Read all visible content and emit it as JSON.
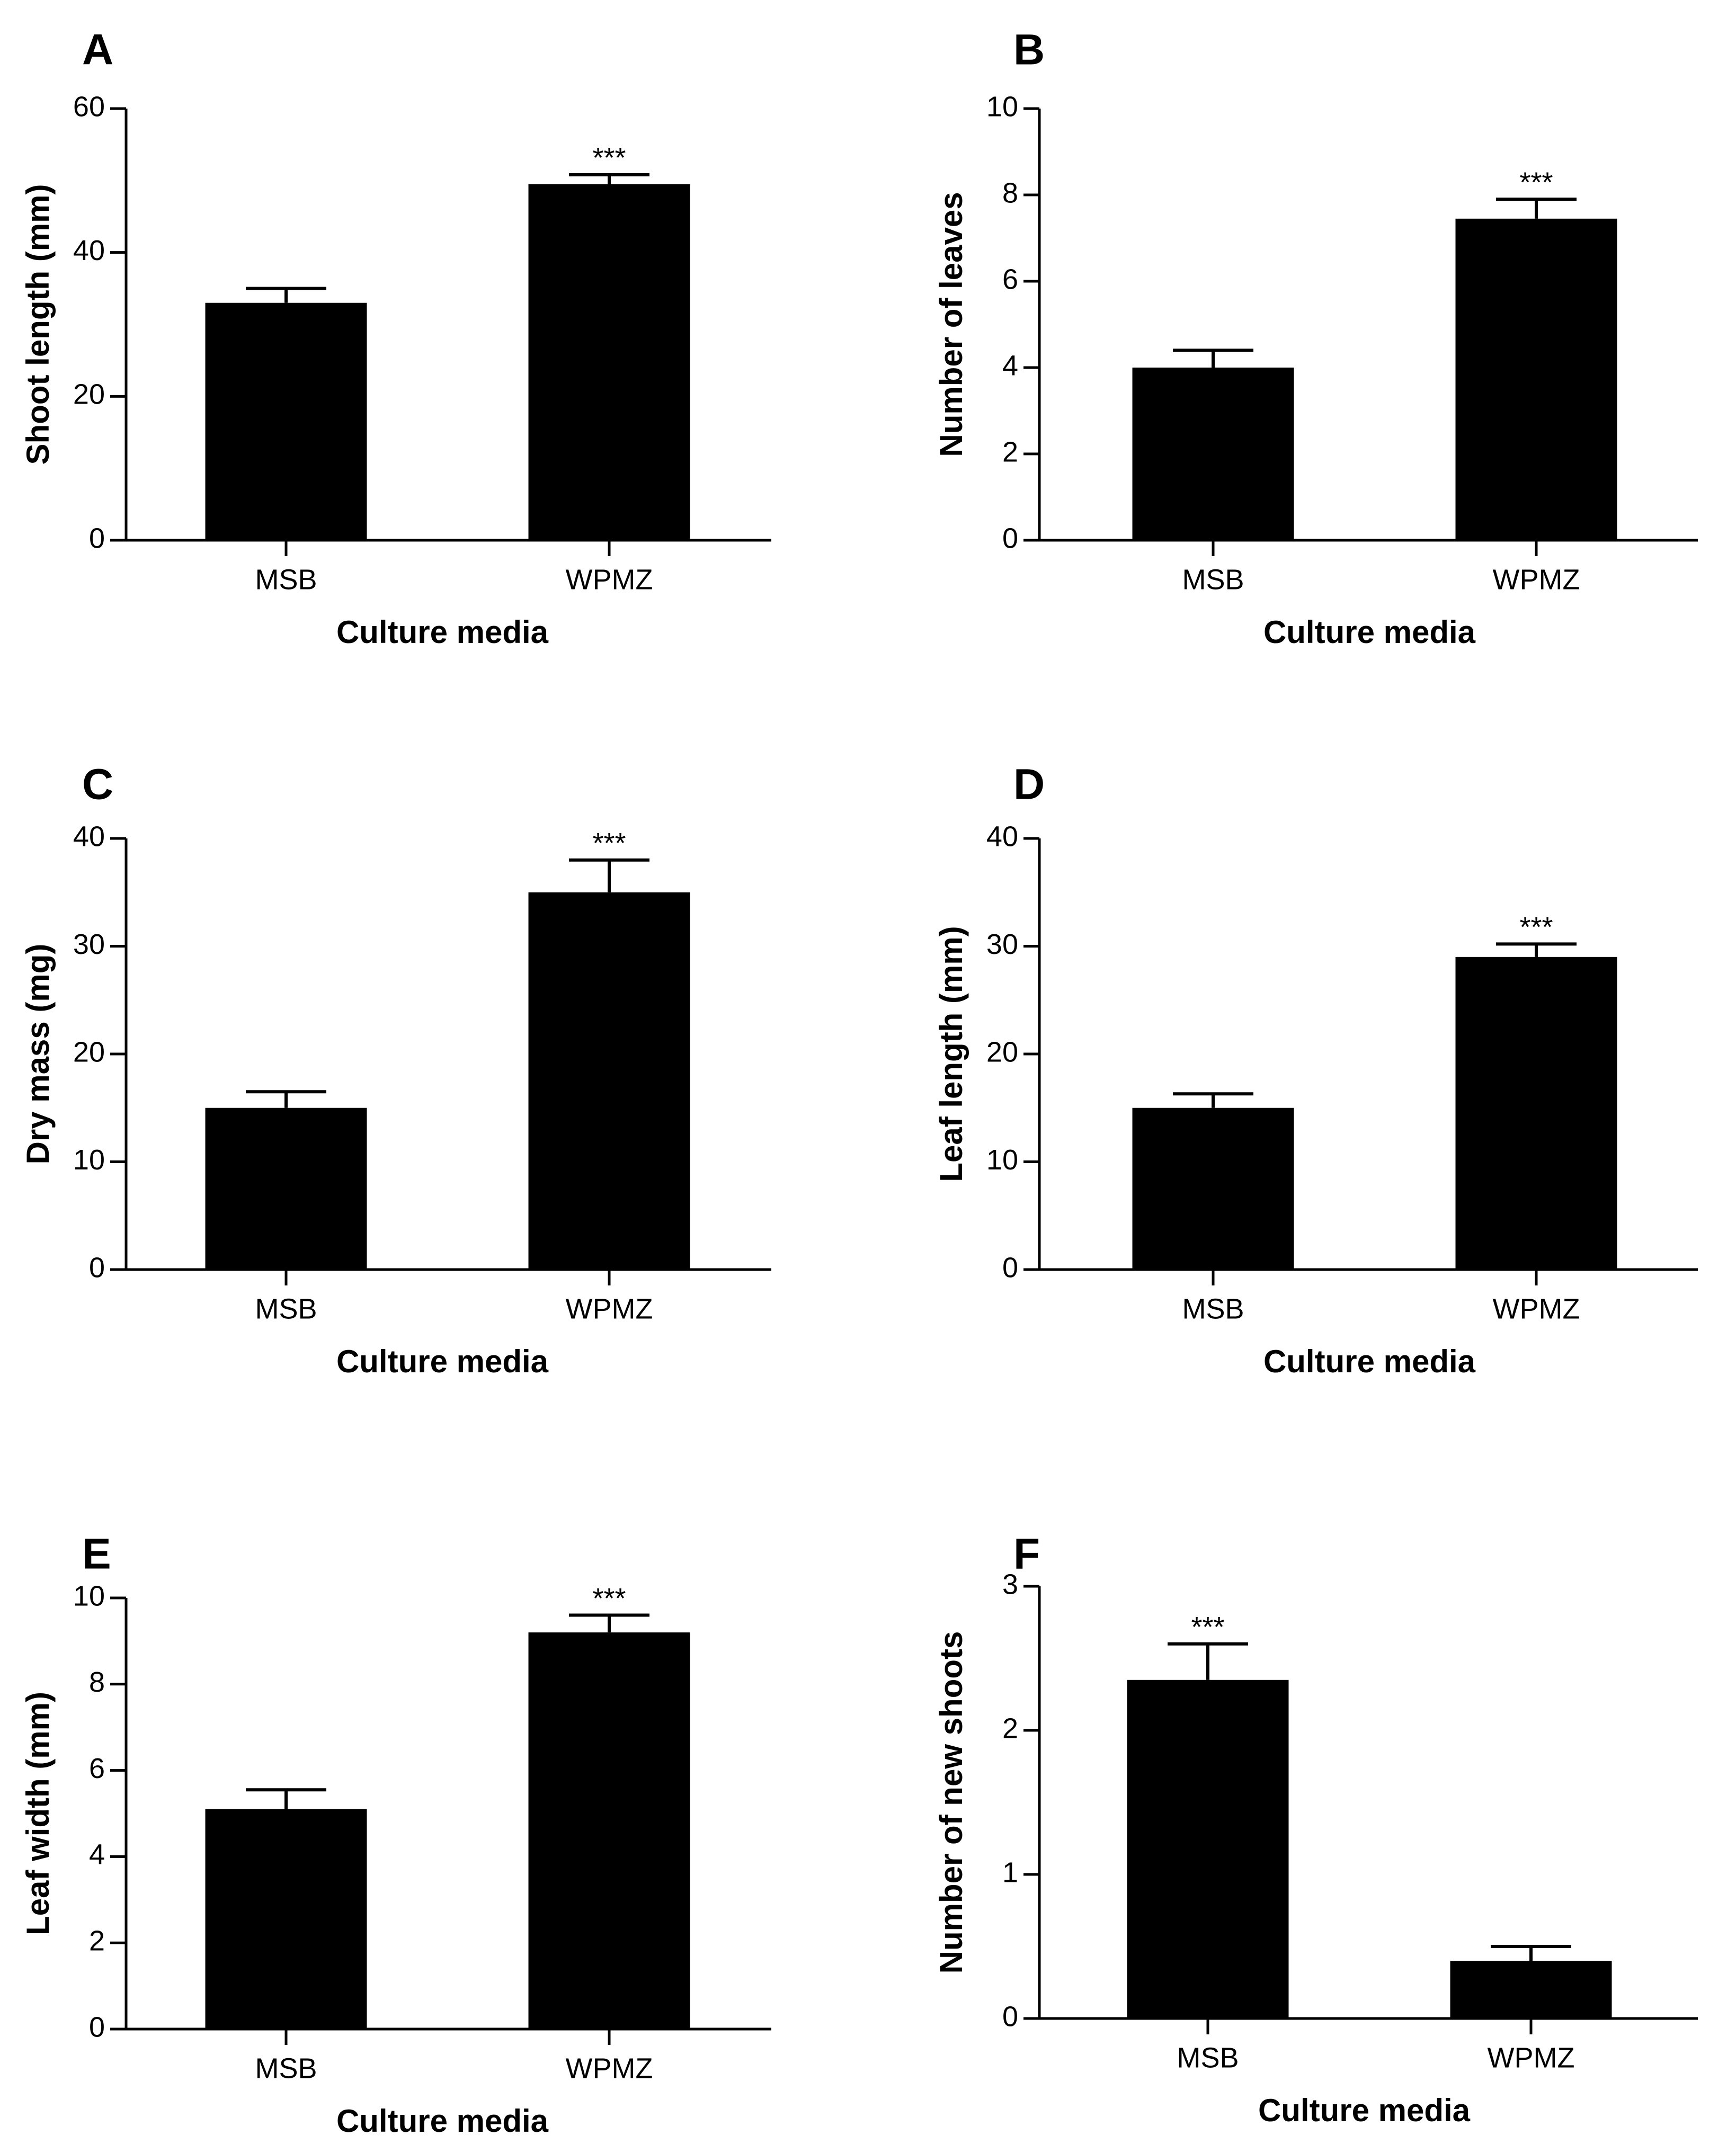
{
  "chart_data": [
    {
      "panel": "A",
      "type": "bar",
      "categories": [
        "MSB",
        "WPMZ"
      ],
      "values": [
        33,
        49.5
      ],
      "errors": [
        2,
        1.3
      ],
      "significance": [
        "",
        "***"
      ],
      "xlabel": "Culture media",
      "ylabel": "Shoot length (mm)",
      "ylim": [
        0,
        60
      ],
      "yticks": [
        0,
        20,
        40,
        60
      ]
    },
    {
      "panel": "B",
      "type": "bar",
      "categories": [
        "MSB",
        "WPMZ"
      ],
      "values": [
        4.0,
        7.45
      ],
      "errors": [
        0.4,
        0.45
      ],
      "significance": [
        "",
        "***"
      ],
      "xlabel": "Culture media",
      "ylabel": "Number of leaves",
      "ylim": [
        0,
        10
      ],
      "yticks": [
        0,
        2,
        4,
        6,
        8,
        10
      ]
    },
    {
      "panel": "C",
      "type": "bar",
      "categories": [
        "MSB",
        "WPMZ"
      ],
      "values": [
        15,
        35
      ],
      "errors": [
        1.5,
        3
      ],
      "significance": [
        "",
        "***"
      ],
      "xlabel": "Culture media",
      "ylabel": "Dry mass (mg)",
      "ylim": [
        0,
        40
      ],
      "yticks": [
        0,
        10,
        20,
        30,
        40
      ]
    },
    {
      "panel": "D",
      "type": "bar",
      "categories": [
        "MSB",
        "WPMZ"
      ],
      "values": [
        15,
        29
      ],
      "errors": [
        1.3,
        1.2
      ],
      "significance": [
        "",
        "***"
      ],
      "xlabel": "Culture media",
      "ylabel": "Leaf length (mm)",
      "ylim": [
        0,
        40
      ],
      "yticks": [
        0,
        10,
        20,
        30,
        40
      ]
    },
    {
      "panel": "E",
      "type": "bar",
      "categories": [
        "MSB",
        "WPMZ"
      ],
      "values": [
        5.1,
        9.2
      ],
      "errors": [
        0.45,
        0.4
      ],
      "significance": [
        "",
        "***"
      ],
      "xlabel": "Culture media",
      "ylabel": "Leaf width (mm)",
      "ylim": [
        0,
        10
      ],
      "yticks": [
        0,
        2,
        4,
        6,
        8,
        10
      ]
    },
    {
      "panel": "F",
      "type": "bar",
      "categories": [
        "MSB",
        "WPMZ"
      ],
      "values": [
        2.35,
        0.4
      ],
      "errors": [
        0.25,
        0.1
      ],
      "significance": [
        "***",
        ""
      ],
      "xlabel": "Culture media",
      "ylabel": "Number of new shoots",
      "ylim": [
        0,
        3
      ],
      "yticks": [
        0,
        1,
        2,
        3
      ]
    }
  ]
}
